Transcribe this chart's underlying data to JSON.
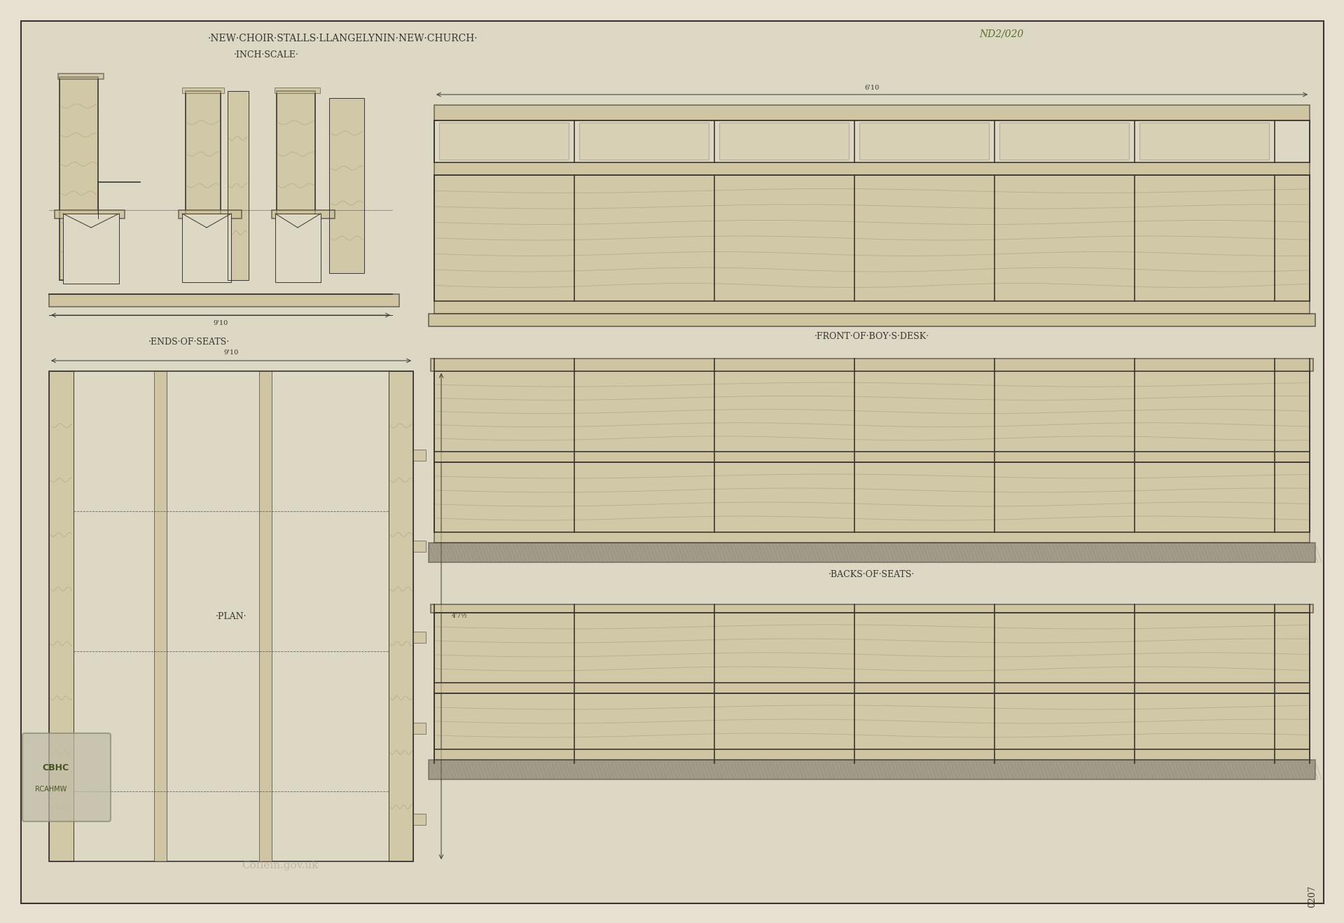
{
  "title1": "·NEW·CHOIR·STALLS·LLANGELYNIN·NEW·CHURCH·",
  "title2": "·INCH·SCALE·",
  "ref": "ND2/020",
  "bg_color": "#e8e0d0",
  "paper_color": "#ddd8c4",
  "ink_color": "#3a3530",
  "wash_color": "#c8bc90",
  "wash_alpha": 0.55,
  "label_ends": "·ENDS·OF·SEATS·",
  "label_front": "·FRONT·OF·BOY·S·DESK·",
  "label_plan": "·PLAN·",
  "label_backs": "·BACKS·OF·SEATS·",
  "watermark_cbhc": "CBHC",
  "watermark_rcahmw": "RCAHMW",
  "watermark_coflein": "Coflein.gov.uk",
  "page_num": "0207"
}
